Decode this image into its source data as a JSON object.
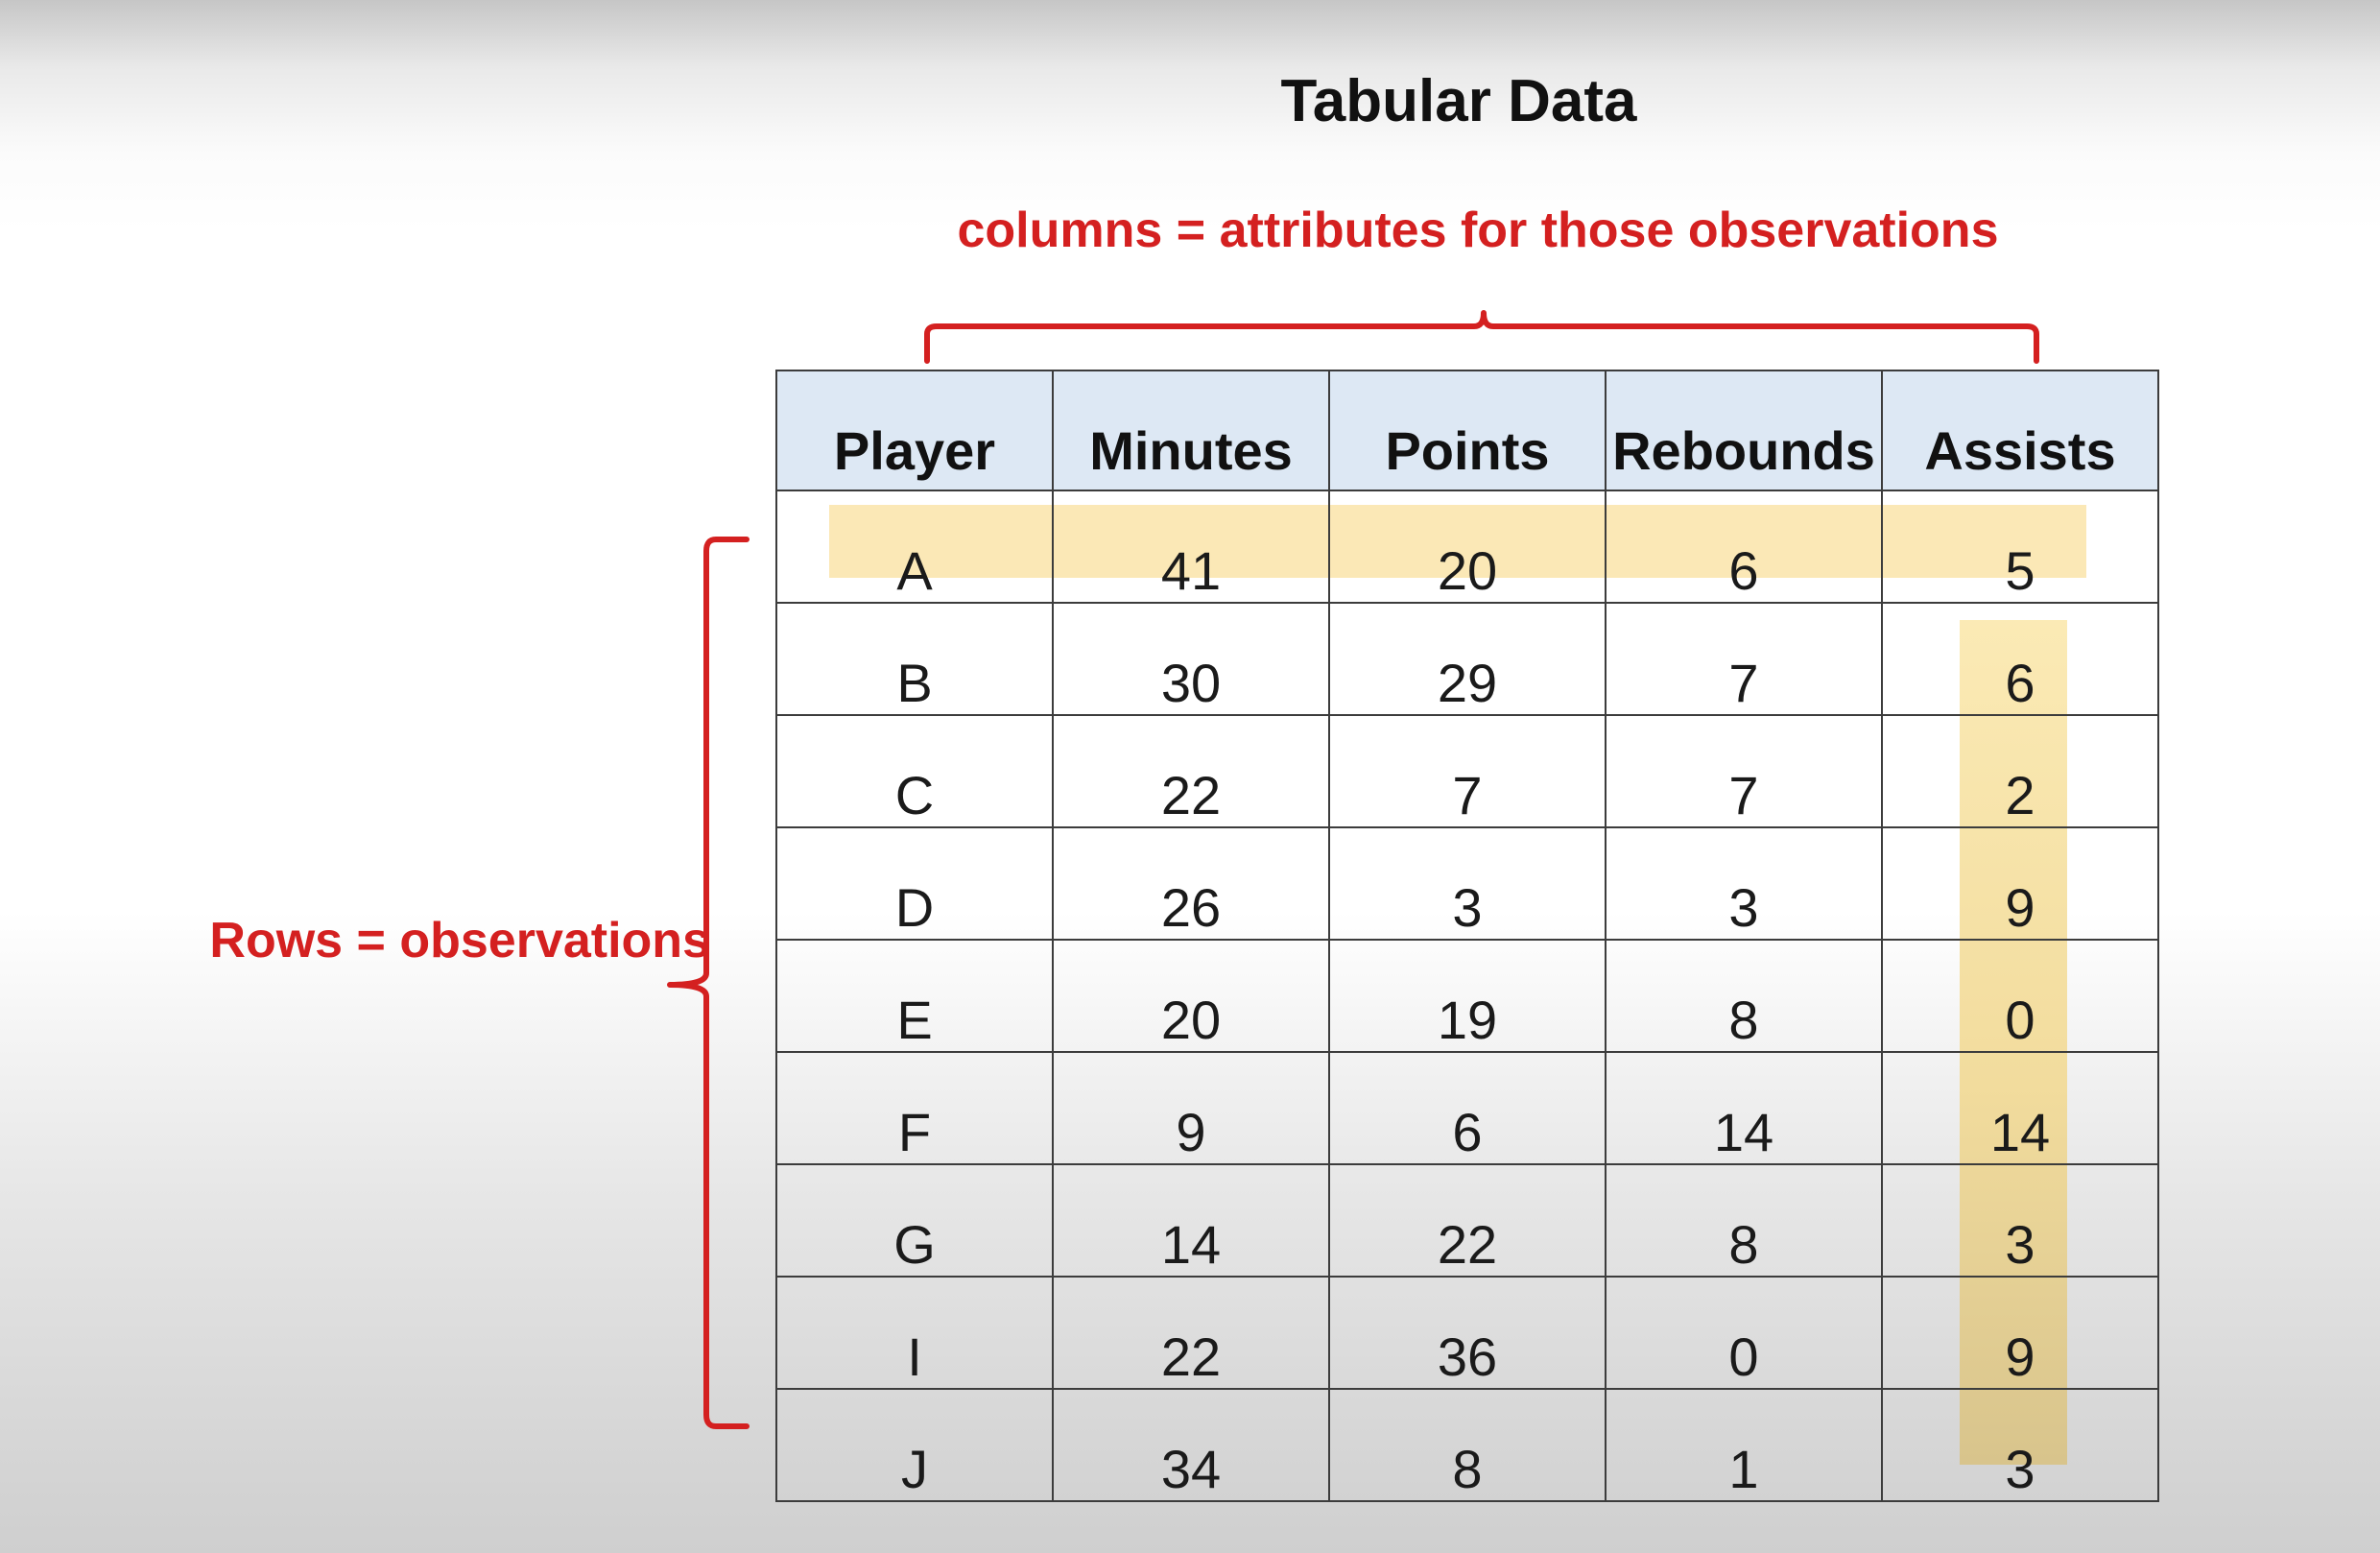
{
  "title": "Tabular Data",
  "annotations": {
    "columns_label": "columns = attributes for those observations",
    "rows_label": "Rows = observations",
    "brace_color": "#d42020",
    "highlight_color": "#fbe8b6"
  },
  "table": {
    "headers": [
      "Player",
      "Minutes",
      "Points",
      "Rebounds",
      "Assists"
    ],
    "rows": [
      [
        "A",
        "41",
        "20",
        "6",
        "5"
      ],
      [
        "B",
        "30",
        "29",
        "7",
        "6"
      ],
      [
        "C",
        "22",
        "7",
        "7",
        "2"
      ],
      [
        "D",
        "26",
        "3",
        "3",
        "9"
      ],
      [
        "E",
        "20",
        "19",
        "8",
        "0"
      ],
      [
        "F",
        "9",
        "6",
        "14",
        "14"
      ],
      [
        "G",
        "14",
        "22",
        "8",
        "3"
      ],
      [
        "I",
        "22",
        "36",
        "0",
        "9"
      ],
      [
        "J",
        "34",
        "8",
        "1",
        "3"
      ]
    ],
    "highlighted_row": "A",
    "highlighted_column": "Assists",
    "header_background": "#dde8f4"
  }
}
